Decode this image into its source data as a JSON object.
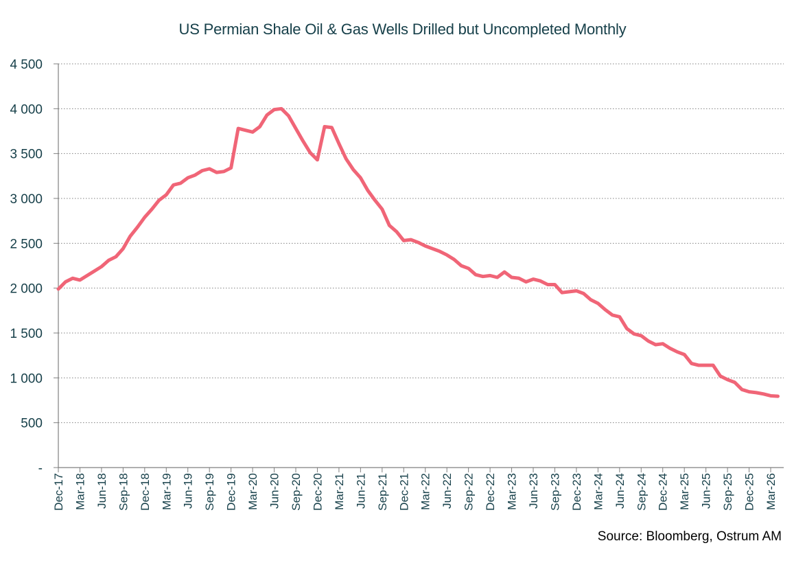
{
  "chart_data": {
    "type": "line",
    "title": "US Permian Shale Oil & Gas Wells Drilled but Uncompleted Monthly",
    "source": "Source: Bloomberg, Ostrum AM",
    "xlabel": "",
    "ylabel": "",
    "ylim": [
      0,
      4500
    ],
    "y_ticks": [
      {
        "value": 0,
        "label": "-"
      },
      {
        "value": 500,
        "label": "500"
      },
      {
        "value": 1000,
        "label": "1 000"
      },
      {
        "value": 1500,
        "label": "1 500"
      },
      {
        "value": 2000,
        "label": "2 000"
      },
      {
        "value": 2500,
        "label": "2 500"
      },
      {
        "value": 3000,
        "label": "3 000"
      },
      {
        "value": 3500,
        "label": "3 500"
      },
      {
        "value": 4000,
        "label": "4 000"
      },
      {
        "value": 4500,
        "label": "4 500"
      }
    ],
    "x_ticks": [
      "Dec-17",
      "Mar-18",
      "Jun-18",
      "Sep-18",
      "Dec-18",
      "Mar-19",
      "Jun-19",
      "Sep-19",
      "Dec-19",
      "Mar-20",
      "Jun-20",
      "Sep-20",
      "Dec-20",
      "Mar-21",
      "Jun-21",
      "Sep-21",
      "Dec-21",
      "Mar-22",
      "Jun-22",
      "Sep-22",
      "Dec-22",
      "Mar-23",
      "Jun-23",
      "Sep-23",
      "Dec-23",
      "Mar-24",
      "Jun-24",
      "Sep-24",
      "Dec-24",
      "Mar-25",
      "Jun-25",
      "Sep-25",
      "Dec-25",
      "Mar-26"
    ],
    "grid": true,
    "colors": {
      "line": "#f06577",
      "axis": "#7f7f7f",
      "grid": "#808080",
      "text": "#17404a"
    },
    "series": [
      {
        "x": [
          "Dec-17",
          "Jan-18",
          "Feb-18",
          "Mar-18",
          "Apr-18",
          "May-18",
          "Jun-18",
          "Jul-18",
          "Aug-18",
          "Sep-18",
          "Oct-18",
          "Nov-18",
          "Dec-18",
          "Jan-19",
          "Feb-19",
          "Mar-19",
          "Apr-19",
          "May-19",
          "Jun-19",
          "Jul-19",
          "Aug-19",
          "Sep-19",
          "Oct-19",
          "Nov-19",
          "Dec-19",
          "Jan-20",
          "Feb-20",
          "Mar-20",
          "Apr-20",
          "May-20",
          "Jun-20",
          "Jul-20",
          "Aug-20",
          "Sep-20",
          "Oct-20",
          "Nov-20",
          "Dec-20",
          "Jan-21",
          "Feb-21",
          "Mar-21",
          "Apr-21",
          "May-21",
          "Jun-21",
          "Jul-21",
          "Aug-21",
          "Sep-21",
          "Oct-21",
          "Nov-21",
          "Dec-21",
          "Jan-22",
          "Feb-22",
          "Mar-22",
          "Apr-22",
          "May-22",
          "Jun-22",
          "Jul-22",
          "Aug-22",
          "Sep-22",
          "Oct-22",
          "Nov-22",
          "Dec-22",
          "Jan-23",
          "Feb-23",
          "Mar-23",
          "Apr-23",
          "May-23",
          "Jun-23",
          "Jul-23",
          "Aug-23",
          "Sep-23",
          "Oct-23",
          "Nov-23",
          "Dec-23",
          "Jan-24",
          "Feb-24",
          "Mar-24",
          "Apr-24",
          "May-24",
          "Jun-24",
          "Jul-24",
          "Aug-24",
          "Sep-24",
          "Oct-24",
          "Nov-24",
          "Dec-24",
          "Jan-25",
          "Feb-25",
          "Mar-25",
          "Apr-25",
          "May-25",
          "Jun-25",
          "Jul-25",
          "Aug-25",
          "Sep-25",
          "Oct-25",
          "Nov-25",
          "Dec-25",
          "Jan-26",
          "Feb-26",
          "Mar-26",
          "Apr-26"
        ],
        "values": [
          1990,
          2070,
          2110,
          2090,
          2140,
          2190,
          2240,
          2310,
          2350,
          2440,
          2580,
          2680,
          2790,
          2880,
          2980,
          3040,
          3150,
          3170,
          3230,
          3260,
          3310,
          3330,
          3290,
          3300,
          3340,
          3780,
          3760,
          3740,
          3800,
          3930,
          3990,
          4000,
          3920,
          3780,
          3640,
          3510,
          3430,
          3800,
          3790,
          3610,
          3440,
          3320,
          3230,
          3090,
          2980,
          2880,
          2700,
          2630,
          2530,
          2540,
          2510,
          2470,
          2440,
          2410,
          2370,
          2320,
          2250,
          2220,
          2150,
          2130,
          2140,
          2120,
          2180,
          2120,
          2110,
          2070,
          2100,
          2080,
          2040,
          2040,
          1950,
          1960,
          1970,
          1940,
          1870,
          1830,
          1760,
          1700,
          1680,
          1550,
          1490,
          1470,
          1410,
          1370,
          1380,
          1330,
          1290,
          1260,
          1160,
          1140,
          1140,
          1140,
          1020,
          980,
          950,
          870,
          845,
          835,
          820,
          800,
          795
        ]
      }
    ]
  }
}
